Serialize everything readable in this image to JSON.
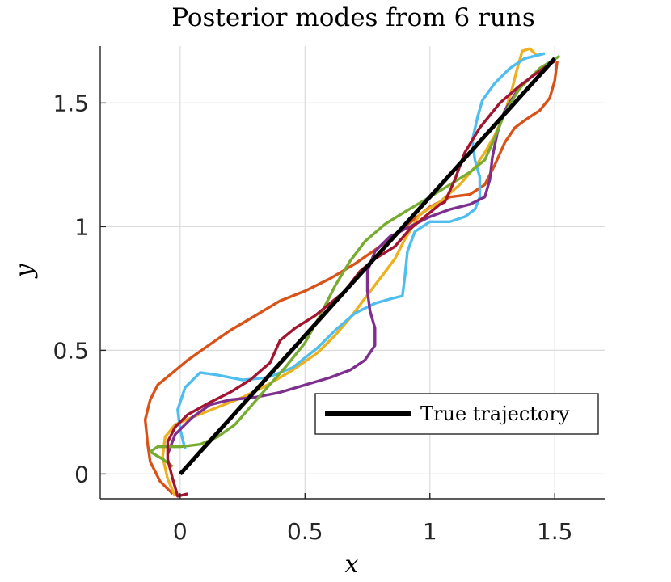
{
  "chart_data": {
    "type": "line",
    "title": "Posterior modes from 6 runs",
    "xlabel": "x",
    "ylabel": "y",
    "xlim": [
      -0.32,
      1.7
    ],
    "ylim": [
      -0.1,
      1.73
    ],
    "x_ticks": [
      0,
      0.5,
      1,
      1.5
    ],
    "x_tick_labels": [
      "0",
      "0.5",
      "1",
      "1.5"
    ],
    "y_ticks": [
      0,
      0.5,
      1,
      1.5
    ],
    "y_tick_labels": [
      "0",
      "0.5",
      "1",
      "1.5"
    ],
    "grid": true,
    "legend": {
      "placement": "bottom-right",
      "entries": [
        "True trajectory"
      ]
    },
    "series": [
      {
        "name": "True trajectory",
        "color": "#000000",
        "width": 5,
        "points": [
          [
            0,
            0
          ],
          [
            1.5,
            1.68
          ]
        ]
      },
      {
        "color": "#D95319",
        "points": [
          [
            -0.03,
            -0.08
          ],
          [
            -0.08,
            -0.03
          ],
          [
            -0.12,
            0.05
          ],
          [
            -0.13,
            0.12
          ],
          [
            -0.14,
            0.22
          ],
          [
            -0.12,
            0.3
          ],
          [
            -0.09,
            0.36
          ],
          [
            -0.03,
            0.41
          ],
          [
            0.03,
            0.46
          ],
          [
            0.1,
            0.51
          ],
          [
            0.2,
            0.58
          ],
          [
            0.3,
            0.64
          ],
          [
            0.4,
            0.7
          ],
          [
            0.5,
            0.74
          ],
          [
            0.6,
            0.79
          ],
          [
            0.7,
            0.85
          ],
          [
            0.8,
            0.92
          ],
          [
            0.9,
            1.0
          ],
          [
            1.0,
            1.08
          ],
          [
            1.08,
            1.12
          ],
          [
            1.16,
            1.13
          ],
          [
            1.22,
            1.17
          ],
          [
            1.26,
            1.25
          ],
          [
            1.3,
            1.34
          ],
          [
            1.34,
            1.4
          ],
          [
            1.38,
            1.43
          ],
          [
            1.44,
            1.47
          ],
          [
            1.48,
            1.52
          ],
          [
            1.5,
            1.59
          ],
          [
            1.51,
            1.67
          ]
        ]
      },
      {
        "color": "#EDB120",
        "points": [
          [
            -0.02,
            -0.09
          ],
          [
            -0.05,
            -0.02
          ],
          [
            -0.07,
            0.07
          ],
          [
            -0.06,
            0.15
          ],
          [
            -0.02,
            0.2
          ],
          [
            0.05,
            0.23
          ],
          [
            0.15,
            0.27
          ],
          [
            0.25,
            0.31
          ],
          [
            0.35,
            0.36
          ],
          [
            0.45,
            0.42
          ],
          [
            0.55,
            0.49
          ],
          [
            0.62,
            0.56
          ],
          [
            0.68,
            0.63
          ],
          [
            0.74,
            0.71
          ],
          [
            0.8,
            0.79
          ],
          [
            0.86,
            0.87
          ],
          [
            0.9,
            0.95
          ],
          [
            0.96,
            1.05
          ],
          [
            1.04,
            1.1
          ],
          [
            1.12,
            1.17
          ],
          [
            1.18,
            1.24
          ],
          [
            1.22,
            1.3
          ],
          [
            1.26,
            1.37
          ],
          [
            1.3,
            1.46
          ],
          [
            1.33,
            1.56
          ],
          [
            1.35,
            1.64
          ],
          [
            1.37,
            1.71
          ],
          [
            1.4,
            1.72
          ],
          [
            1.43,
            1.69
          ]
        ]
      },
      {
        "color": "#4DBEEE",
        "points": [
          [
            0.02,
            0.1
          ],
          [
            0.0,
            0.18
          ],
          [
            -0.01,
            0.26
          ],
          [
            0.02,
            0.35
          ],
          [
            0.08,
            0.41
          ],
          [
            0.15,
            0.4
          ],
          [
            0.25,
            0.38
          ],
          [
            0.35,
            0.39
          ],
          [
            0.45,
            0.43
          ],
          [
            0.55,
            0.51
          ],
          [
            0.62,
            0.58
          ],
          [
            0.7,
            0.65
          ],
          [
            0.78,
            0.69
          ],
          [
            0.85,
            0.71
          ],
          [
            0.89,
            0.72
          ],
          [
            0.9,
            0.8
          ],
          [
            0.91,
            0.9
          ],
          [
            0.94,
            0.98
          ],
          [
            1.0,
            1.02
          ],
          [
            1.08,
            1.02
          ],
          [
            1.14,
            1.04
          ],
          [
            1.18,
            1.07
          ],
          [
            1.2,
            1.12
          ],
          [
            1.2,
            1.2
          ],
          [
            1.18,
            1.27
          ],
          [
            1.17,
            1.35
          ],
          [
            1.19,
            1.44
          ],
          [
            1.21,
            1.51
          ],
          [
            1.26,
            1.58
          ],
          [
            1.32,
            1.64
          ],
          [
            1.38,
            1.68
          ],
          [
            1.46,
            1.7
          ]
        ]
      },
      {
        "color": "#7E2F8E",
        "points": [
          [
            -0.05,
            0.08
          ],
          [
            -0.02,
            0.16
          ],
          [
            0.05,
            0.23
          ],
          [
            0.12,
            0.28
          ],
          [
            0.2,
            0.3
          ],
          [
            0.3,
            0.31
          ],
          [
            0.4,
            0.33
          ],
          [
            0.5,
            0.36
          ],
          [
            0.6,
            0.39
          ],
          [
            0.68,
            0.42
          ],
          [
            0.74,
            0.46
          ],
          [
            0.78,
            0.52
          ],
          [
            0.78,
            0.59
          ],
          [
            0.76,
            0.66
          ],
          [
            0.75,
            0.74
          ],
          [
            0.75,
            0.82
          ],
          [
            0.78,
            0.9
          ],
          [
            0.84,
            0.96
          ],
          [
            0.92,
            1.0
          ],
          [
            1.0,
            1.04
          ],
          [
            1.08,
            1.07
          ],
          [
            1.16,
            1.09
          ],
          [
            1.22,
            1.12
          ],
          [
            1.24,
            1.19
          ],
          [
            1.25,
            1.28
          ],
          [
            1.27,
            1.38
          ],
          [
            1.3,
            1.47
          ],
          [
            1.35,
            1.55
          ],
          [
            1.42,
            1.62
          ],
          [
            1.5,
            1.67
          ]
        ]
      },
      {
        "color": "#77AC30",
        "points": [
          [
            -0.03,
            0.03
          ],
          [
            -0.07,
            0.06
          ],
          [
            -0.12,
            0.09
          ],
          [
            -0.09,
            0.11
          ],
          [
            0.0,
            0.11
          ],
          [
            0.08,
            0.12
          ],
          [
            0.15,
            0.15
          ],
          [
            0.22,
            0.2
          ],
          [
            0.28,
            0.27
          ],
          [
            0.34,
            0.34
          ],
          [
            0.42,
            0.43
          ],
          [
            0.5,
            0.53
          ],
          [
            0.56,
            0.64
          ],
          [
            0.62,
            0.76
          ],
          [
            0.68,
            0.86
          ],
          [
            0.74,
            0.94
          ],
          [
            0.82,
            1.01
          ],
          [
            0.9,
            1.06
          ],
          [
            1.0,
            1.12
          ],
          [
            1.08,
            1.17
          ],
          [
            1.16,
            1.22
          ],
          [
            1.22,
            1.27
          ],
          [
            1.26,
            1.36
          ],
          [
            1.3,
            1.46
          ],
          [
            1.36,
            1.56
          ],
          [
            1.44,
            1.64
          ],
          [
            1.52,
            1.69
          ]
        ]
      },
      {
        "color": "#A2142F",
        "points": [
          [
            0.03,
            -0.08
          ],
          [
            -0.01,
            -0.09
          ],
          [
            -0.03,
            -0.02
          ],
          [
            -0.05,
            0.06
          ],
          [
            -0.05,
            0.13
          ],
          [
            -0.02,
            0.19
          ],
          [
            0.03,
            0.24
          ],
          [
            0.12,
            0.29
          ],
          [
            0.2,
            0.33
          ],
          [
            0.28,
            0.38
          ],
          [
            0.36,
            0.45
          ],
          [
            0.4,
            0.54
          ],
          [
            0.46,
            0.59
          ],
          [
            0.54,
            0.64
          ],
          [
            0.6,
            0.69
          ],
          [
            0.66,
            0.74
          ],
          [
            0.72,
            0.82
          ],
          [
            0.78,
            0.87
          ],
          [
            0.86,
            0.92
          ],
          [
            0.92,
            0.99
          ],
          [
            0.98,
            1.04
          ],
          [
            1.04,
            1.09
          ],
          [
            1.06,
            1.1
          ],
          [
            1.1,
            1.19
          ],
          [
            1.14,
            1.3
          ],
          [
            1.2,
            1.4
          ],
          [
            1.28,
            1.5
          ],
          [
            1.36,
            1.57
          ],
          [
            1.44,
            1.63
          ],
          [
            1.5,
            1.67
          ]
        ]
      }
    ]
  }
}
